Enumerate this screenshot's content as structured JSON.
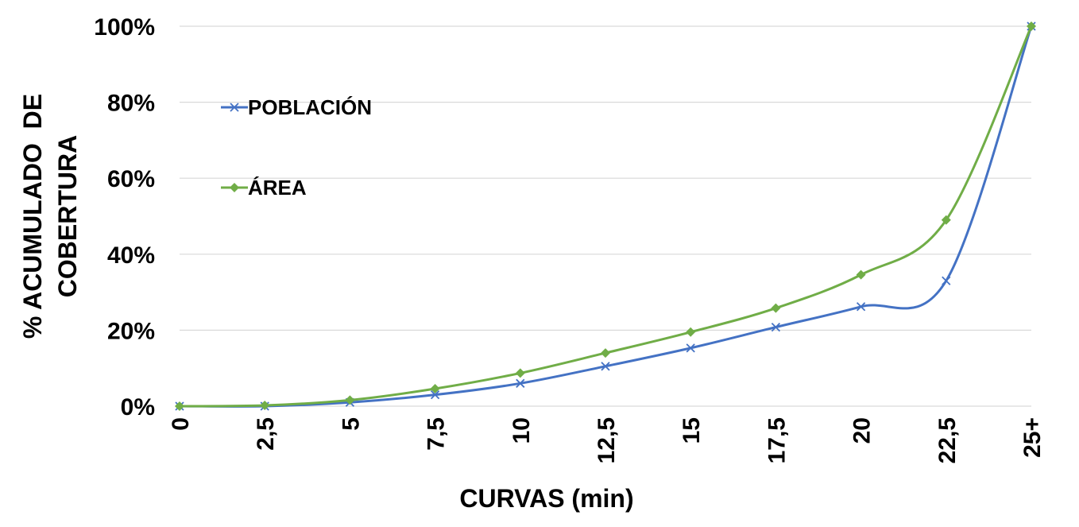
{
  "chart_data": {
    "type": "line",
    "categories": [
      "0",
      "2,5",
      "5",
      "7,5",
      "10",
      "12,5",
      "15",
      "17,5",
      "20",
      "22,5",
      "25+"
    ],
    "series": [
      {
        "name": "POBLACIÓN",
        "color": "#4472C4",
        "marker": "x",
        "values": [
          0,
          0,
          1,
          3,
          6,
          10.5,
          15.3,
          20.8,
          26.2,
          33,
          100
        ]
      },
      {
        "name": "ÁREA",
        "color": "#70AD47",
        "marker": "diamond",
        "values": [
          0,
          0.2,
          1.6,
          4.6,
          8.7,
          14,
          19.5,
          25.8,
          34.6,
          49,
          100
        ]
      }
    ],
    "ylim": [
      0,
      100
    ],
    "yticks": [
      "0%",
      "20%",
      "40%",
      "60%",
      "80%",
      "100%"
    ],
    "xlabel": "CURVAS (min)",
    "ylabel_lines": [
      "% ACUMULADO  DE",
      "COBERTURA"
    ],
    "grid": true,
    "legend_position": "upper-left-inside"
  }
}
